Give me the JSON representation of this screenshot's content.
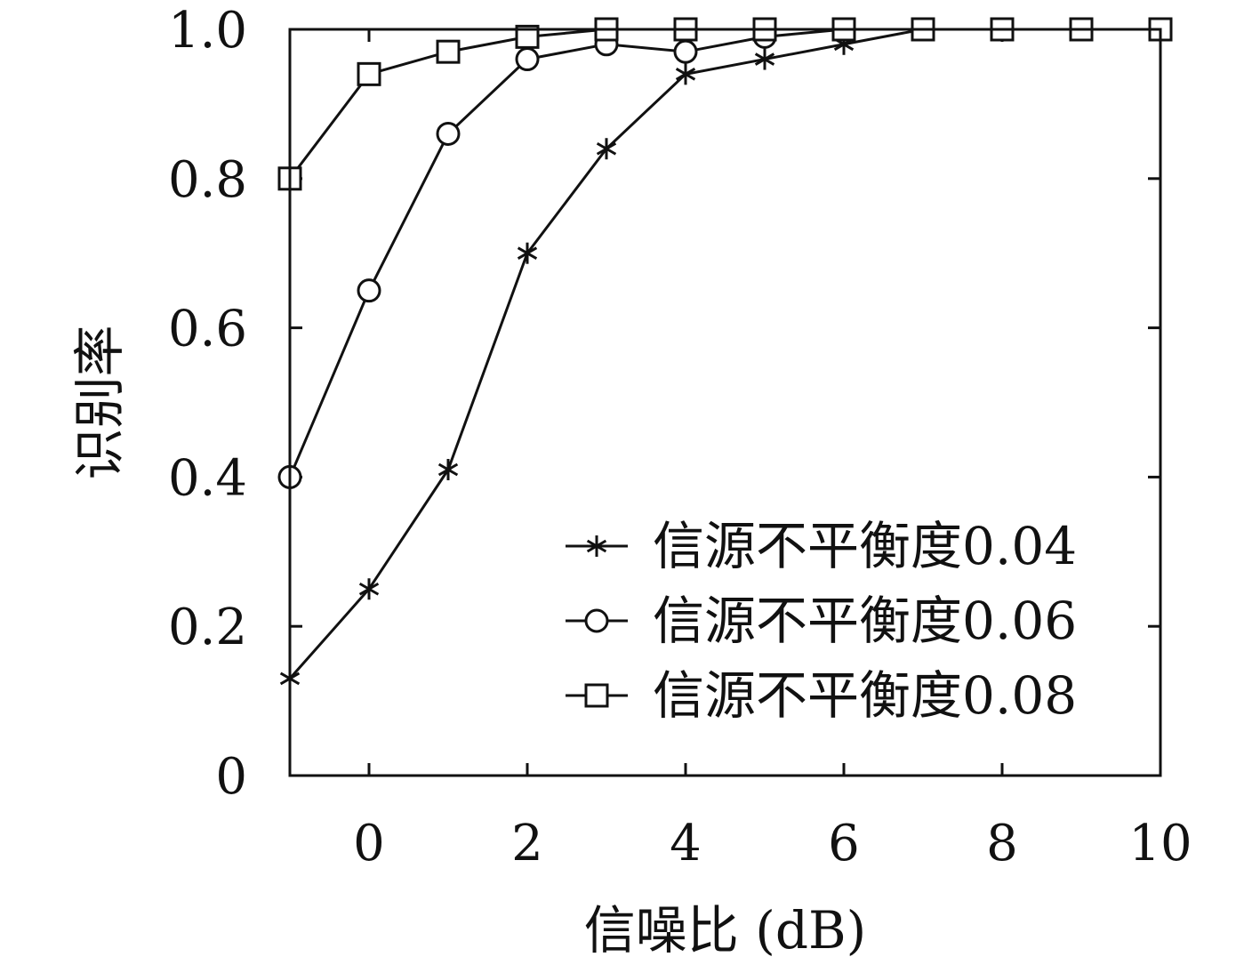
{
  "chart_data": {
    "type": "line",
    "title": "",
    "xlabel": "信噪比 (dB)",
    "ylabel": "识别率",
    "xlim": [
      -1,
      10
    ],
    "ylim": [
      0,
      1
    ],
    "xticks": [
      0,
      2,
      4,
      6,
      8,
      10
    ],
    "xtick_labels": [
      "0",
      "2",
      "4",
      "6",
      "8",
      "10"
    ],
    "yticks": [
      0,
      0.2,
      0.4,
      0.6,
      0.8,
      1.0
    ],
    "ytick_labels": [
      "0",
      "0.2",
      "0.4",
      "0.6",
      "0.8",
      "1.0"
    ],
    "grid": false,
    "legend_position": "bottom-right",
    "x": [
      -1,
      0,
      1,
      2,
      3,
      4,
      5,
      6,
      7,
      8,
      9,
      10
    ],
    "series": [
      {
        "name": "信源不平衡度0.04",
        "marker": "star",
        "values": [
          0.13,
          0.25,
          0.41,
          0.7,
          0.84,
          0.94,
          0.96,
          0.98,
          1.0,
          1.0,
          1.0,
          1.0
        ]
      },
      {
        "name": "信源不平衡度0.06",
        "marker": "circle",
        "values": [
          0.4,
          0.65,
          0.86,
          0.96,
          0.98,
          0.97,
          0.99,
          1.0,
          1.0,
          1.0,
          1.0,
          1.0
        ]
      },
      {
        "name": "信源不平衡度0.08",
        "marker": "square",
        "values": [
          0.8,
          0.94,
          0.97,
          0.99,
          1.0,
          1.0,
          1.0,
          1.0,
          1.0,
          1.0,
          1.0,
          1.0
        ]
      }
    ],
    "colors": {
      "line": "#111111",
      "background": "#ffffff"
    }
  }
}
